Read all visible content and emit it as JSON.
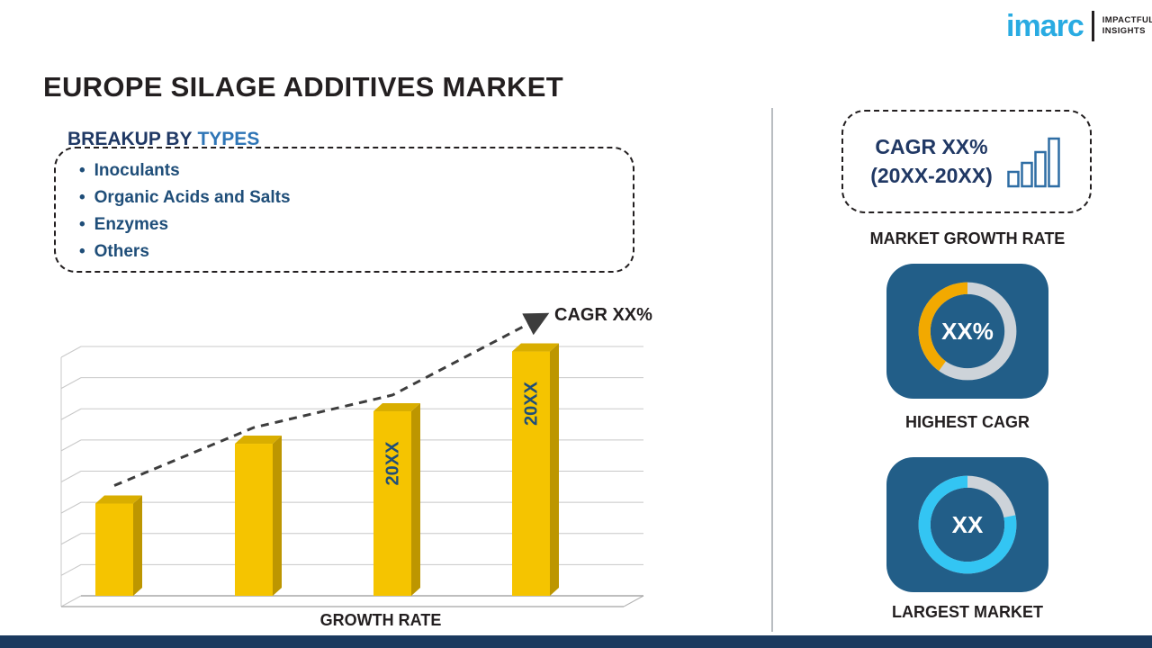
{
  "page": {
    "title": "EUROPE SILAGE ADDITIVES MARKET"
  },
  "logo": {
    "name": "imarc",
    "tagline_line1": "IMPACTFUL",
    "tagline_line2": "INSIGHTS"
  },
  "breakup": {
    "heading_prefix": "BREAKUP BY",
    "heading_highlight": "TYPES",
    "items": [
      "Inoculants",
      "Organic Acids and Salts",
      "Enzymes",
      "Others"
    ]
  },
  "chart_data": {
    "type": "bar",
    "title": "",
    "categories": [
      "",
      "",
      "20XX",
      "20XX"
    ],
    "values": [
      37,
      61,
      74,
      98
    ],
    "ylim": [
      0,
      100
    ],
    "bar_labels": [
      "",
      "",
      "20XX",
      "20XX"
    ],
    "xlabel": "GROWTH RATE",
    "trend_label": "CAGR XX%",
    "grid": true,
    "legend": "none",
    "bar_color": "#F5C400",
    "bar_color_side": "#BD9600",
    "bar_color_top": "#D9AE00",
    "trend_color": "#3d3d3d"
  },
  "sidebar": {
    "cagr_card": {
      "line1": "CAGR XX%",
      "line2": "(20XX-20XX)"
    },
    "market_growth_label": "MARKET GROWTH RATE",
    "highest_cagr": {
      "value": "XX%",
      "label": "HIGHEST CAGR",
      "accent": "#F2A900",
      "fraction": 0.4
    },
    "largest_market": {
      "value": "XX",
      "label": "LARGEST MARKET",
      "accent": "#33C5F3",
      "fraction": 0.78
    }
  }
}
